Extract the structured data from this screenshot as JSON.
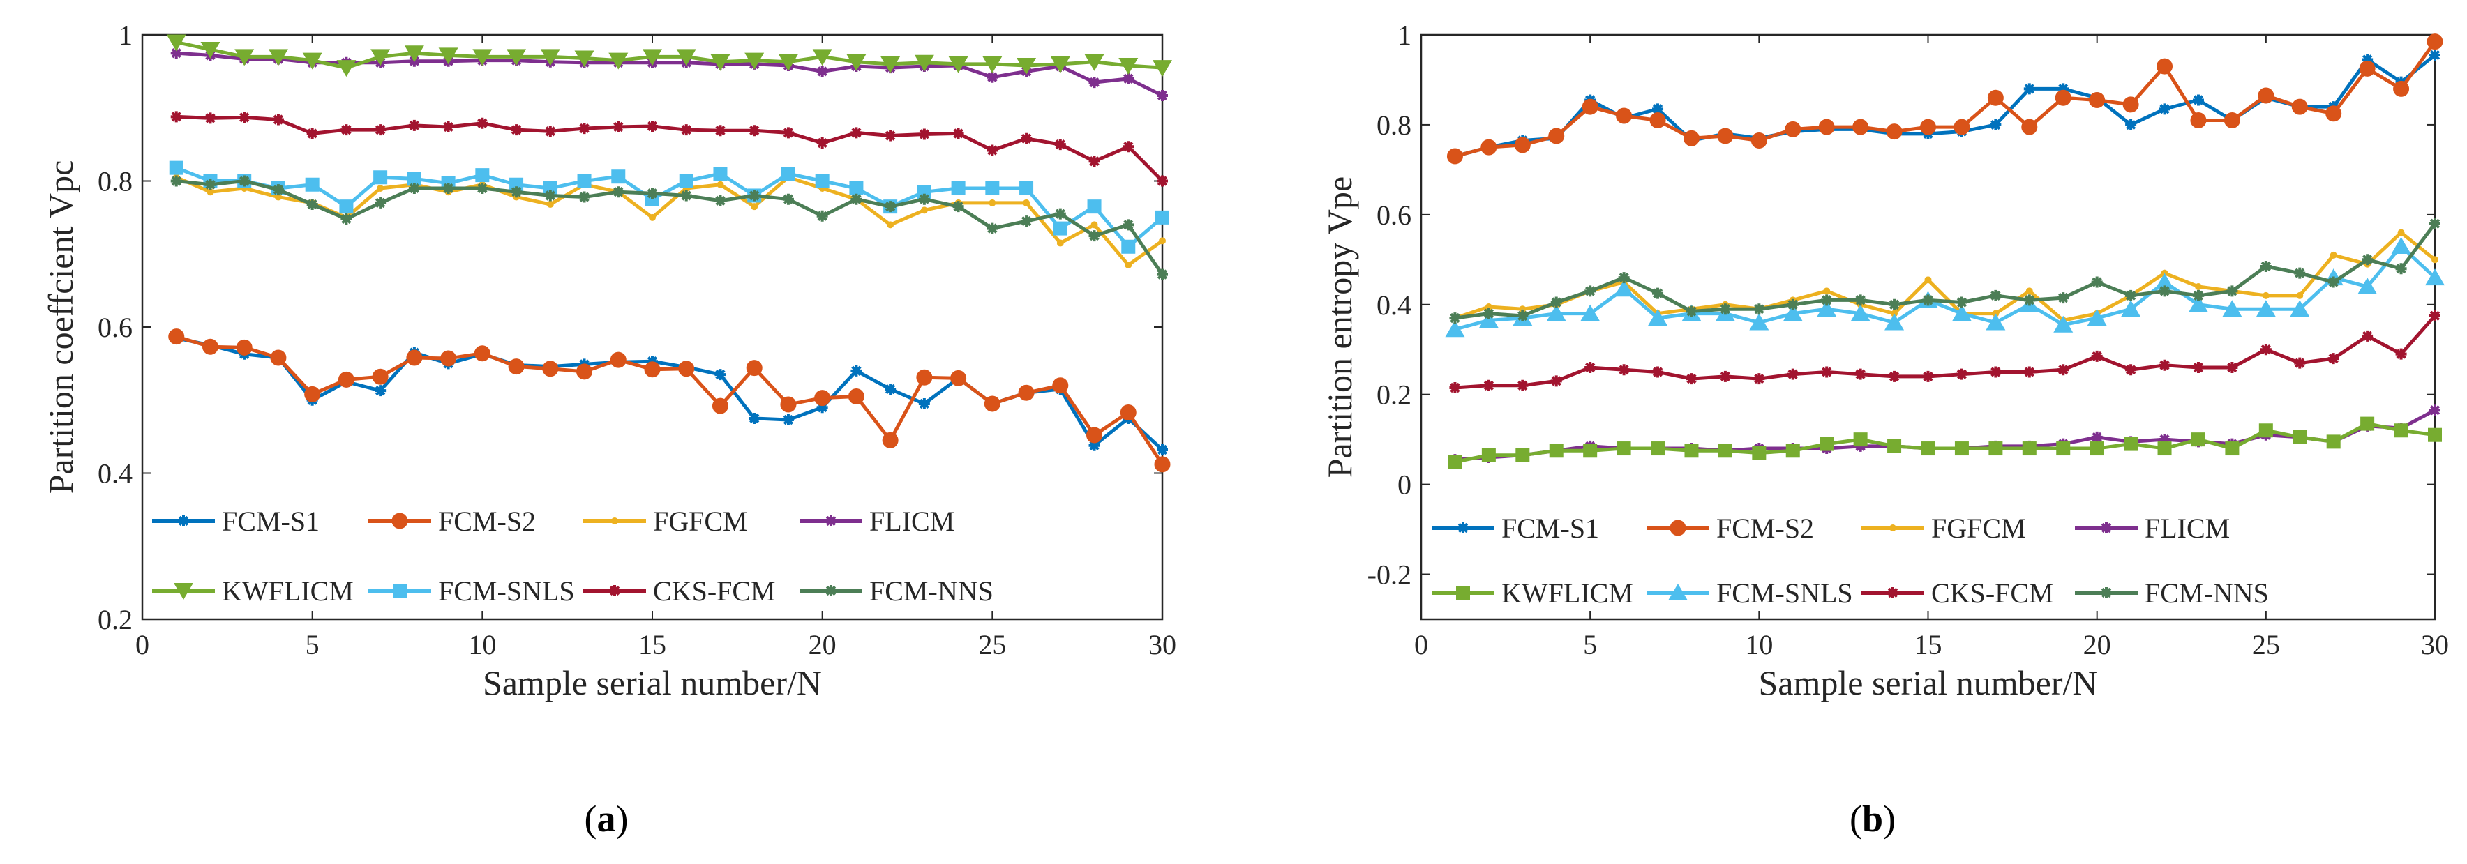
{
  "chart_data": [
    {
      "type": "line",
      "panel_label": "(a)",
      "panel_letter": "a",
      "xlabel": "Sample serial number/N",
      "ylabel": "Partition coeffcient Vpc",
      "xlim": [
        0,
        30
      ],
      "ylim": [
        0.2,
        1
      ],
      "xticks": [
        0,
        5,
        10,
        15,
        20,
        25,
        30
      ],
      "yticks": [
        0.2,
        0.4,
        0.6,
        0.8,
        1
      ],
      "ytick_labels": [
        "0.2",
        "0.4",
        "0.6",
        "0.8",
        "1"
      ],
      "x": [
        1,
        2,
        3,
        4,
        5,
        6,
        7,
        8,
        9,
        10,
        11,
        12,
        13,
        14,
        15,
        16,
        17,
        18,
        19,
        20,
        21,
        22,
        23,
        24,
        25,
        26,
        27,
        28,
        29,
        30
      ],
      "legend_position": "bottom",
      "series": [
        {
          "name": "FCM-S1",
          "color": "#0072BD",
          "marker": "star",
          "values": [
            0.585,
            0.575,
            0.563,
            0.558,
            0.5,
            0.525,
            0.513,
            0.565,
            0.55,
            0.563,
            0.548,
            0.546,
            0.549,
            0.552,
            0.553,
            0.545,
            0.535,
            0.475,
            0.473,
            0.49,
            0.54,
            0.515,
            0.495,
            0.53,
            0.495,
            0.51,
            0.515,
            0.438,
            0.475,
            0.432
          ]
        },
        {
          "name": "FCM-S2",
          "color": "#D95319",
          "marker": "circle",
          "values": [
            0.587,
            0.573,
            0.572,
            0.558,
            0.508,
            0.528,
            0.532,
            0.558,
            0.557,
            0.564,
            0.546,
            0.543,
            0.539,
            0.555,
            0.542,
            0.543,
            0.492,
            0.544,
            0.494,
            0.503,
            0.505,
            0.445,
            0.531,
            0.53,
            0.495,
            0.51,
            0.52,
            0.452,
            0.483,
            0.412
          ]
        },
        {
          "name": "FGFCM",
          "color": "#EDB120",
          "marker": "point",
          "values": [
            0.805,
            0.785,
            0.79,
            0.778,
            0.77,
            0.75,
            0.79,
            0.795,
            0.785,
            0.795,
            0.778,
            0.768,
            0.795,
            0.785,
            0.75,
            0.79,
            0.795,
            0.765,
            0.805,
            0.79,
            0.775,
            0.74,
            0.76,
            0.77,
            0.77,
            0.77,
            0.715,
            0.74,
            0.685,
            0.718
          ]
        },
        {
          "name": "FLICM",
          "color": "#7E2F8E",
          "marker": "star",
          "values": [
            0.975,
            0.972,
            0.967,
            0.967,
            0.962,
            0.962,
            0.962,
            0.964,
            0.964,
            0.965,
            0.965,
            0.963,
            0.962,
            0.962,
            0.962,
            0.962,
            0.96,
            0.96,
            0.958,
            0.95,
            0.957,
            0.955,
            0.957,
            0.958,
            0.942,
            0.95,
            0.957,
            0.935,
            0.94,
            0.917
          ]
        },
        {
          "name": "KWFLICM",
          "color": "#77AC30",
          "marker": "triangle-down",
          "values": [
            0.99,
            0.98,
            0.97,
            0.97,
            0.965,
            0.955,
            0.97,
            0.975,
            0.972,
            0.97,
            0.97,
            0.97,
            0.968,
            0.965,
            0.97,
            0.97,
            0.963,
            0.965,
            0.963,
            0.97,
            0.963,
            0.96,
            0.962,
            0.96,
            0.96,
            0.958,
            0.96,
            0.963,
            0.958,
            0.955
          ]
        },
        {
          "name": "FCM-SNLS",
          "color": "#4DBEEE",
          "marker": "square",
          "values": [
            0.818,
            0.8,
            0.8,
            0.79,
            0.795,
            0.765,
            0.805,
            0.803,
            0.797,
            0.808,
            0.795,
            0.79,
            0.8,
            0.806,
            0.775,
            0.8,
            0.81,
            0.78,
            0.81,
            0.8,
            0.79,
            0.765,
            0.785,
            0.79,
            0.79,
            0.79,
            0.735,
            0.765,
            0.71,
            0.75
          ]
        },
        {
          "name": "CKS-FCM",
          "color": "#A2142F",
          "marker": "star",
          "values": [
            0.888,
            0.886,
            0.887,
            0.884,
            0.865,
            0.87,
            0.87,
            0.876,
            0.874,
            0.879,
            0.87,
            0.868,
            0.872,
            0.874,
            0.875,
            0.87,
            0.869,
            0.869,
            0.866,
            0.852,
            0.866,
            0.862,
            0.864,
            0.865,
            0.842,
            0.858,
            0.85,
            0.827,
            0.847,
            0.8
          ]
        },
        {
          "name": "FCM-NNS",
          "color": "#4C7E56",
          "marker": "star",
          "values": [
            0.8,
            0.795,
            0.8,
            0.788,
            0.768,
            0.748,
            0.77,
            0.79,
            0.79,
            0.79,
            0.785,
            0.78,
            0.778,
            0.785,
            0.783,
            0.78,
            0.773,
            0.78,
            0.775,
            0.752,
            0.775,
            0.765,
            0.775,
            0.765,
            0.735,
            0.745,
            0.755,
            0.725,
            0.74,
            0.672
          ]
        }
      ]
    },
    {
      "type": "line",
      "panel_label": "(b)",
      "panel_letter": "b",
      "xlabel": "Sample serial number/N",
      "ylabel": "Partition entropy Vpe",
      "xlim": [
        0,
        30
      ],
      "ylim": [
        -0.3,
        1
      ],
      "xticks": [
        0,
        5,
        10,
        15,
        20,
        25,
        30
      ],
      "yticks": [
        -0.2,
        0,
        0.2,
        0.4,
        0.6,
        0.8,
        1
      ],
      "ytick_labels": [
        "-0.2",
        "0",
        "0.2",
        "0.4",
        "0.6",
        "0.8",
        "1"
      ],
      "x": [
        1,
        2,
        3,
        4,
        5,
        6,
        7,
        8,
        9,
        10,
        11,
        12,
        13,
        14,
        15,
        16,
        17,
        18,
        19,
        20,
        21,
        22,
        23,
        24,
        25,
        26,
        27,
        28,
        29,
        30
      ],
      "legend_position": "bottom",
      "series": [
        {
          "name": "FCM-S1",
          "color": "#0072BD",
          "marker": "star",
          "values": [
            0.73,
            0.75,
            0.765,
            0.77,
            0.855,
            0.815,
            0.835,
            0.765,
            0.78,
            0.77,
            0.785,
            0.79,
            0.79,
            0.78,
            0.78,
            0.785,
            0.8,
            0.88,
            0.88,
            0.86,
            0.8,
            0.835,
            0.855,
            0.81,
            0.86,
            0.84,
            0.84,
            0.945,
            0.895,
            0.955
          ]
        },
        {
          "name": "FCM-S2",
          "color": "#D95319",
          "marker": "circle",
          "values": [
            0.73,
            0.75,
            0.755,
            0.775,
            0.84,
            0.82,
            0.81,
            0.77,
            0.775,
            0.765,
            0.79,
            0.795,
            0.795,
            0.785,
            0.795,
            0.795,
            0.86,
            0.795,
            0.86,
            0.855,
            0.845,
            0.93,
            0.81,
            0.81,
            0.865,
            0.84,
            0.825,
            0.925,
            0.88,
            0.985
          ]
        },
        {
          "name": "FGFCM",
          "color": "#EDB120",
          "marker": "point",
          "values": [
            0.37,
            0.395,
            0.39,
            0.4,
            0.43,
            0.45,
            0.38,
            0.39,
            0.4,
            0.39,
            0.41,
            0.43,
            0.4,
            0.38,
            0.455,
            0.38,
            0.38,
            0.43,
            0.365,
            0.38,
            0.42,
            0.47,
            0.44,
            0.43,
            0.42,
            0.42,
            0.51,
            0.49,
            0.56,
            0.5
          ]
        },
        {
          "name": "FLICM",
          "color": "#7E2F8E",
          "marker": "star",
          "values": [
            0.055,
            0.06,
            0.065,
            0.075,
            0.085,
            0.08,
            0.08,
            0.08,
            0.075,
            0.08,
            0.08,
            0.08,
            0.085,
            0.085,
            0.08,
            0.08,
            0.085,
            0.085,
            0.09,
            0.105,
            0.095,
            0.1,
            0.095,
            0.09,
            0.11,
            0.105,
            0.095,
            0.13,
            0.125,
            0.165
          ]
        },
        {
          "name": "KWFLICM",
          "color": "#77AC30",
          "marker": "square",
          "values": [
            0.05,
            0.065,
            0.065,
            0.075,
            0.075,
            0.08,
            0.08,
            0.075,
            0.075,
            0.07,
            0.075,
            0.09,
            0.1,
            0.085,
            0.08,
            0.08,
            0.08,
            0.08,
            0.08,
            0.08,
            0.09,
            0.08,
            0.1,
            0.08,
            0.12,
            0.105,
            0.095,
            0.135,
            0.12,
            0.11
          ]
        },
        {
          "name": "FCM-SNLS",
          "color": "#4DBEEE",
          "marker": "triangle-up",
          "values": [
            0.345,
            0.365,
            0.37,
            0.38,
            0.38,
            0.435,
            0.37,
            0.38,
            0.38,
            0.36,
            0.38,
            0.39,
            0.38,
            0.36,
            0.41,
            0.38,
            0.36,
            0.4,
            0.355,
            0.37,
            0.39,
            0.45,
            0.4,
            0.39,
            0.39,
            0.39,
            0.46,
            0.44,
            0.53,
            0.46
          ]
        },
        {
          "name": "CKS-FCM",
          "color": "#A2142F",
          "marker": "star",
          "values": [
            0.215,
            0.22,
            0.22,
            0.23,
            0.26,
            0.255,
            0.25,
            0.235,
            0.24,
            0.235,
            0.245,
            0.25,
            0.245,
            0.24,
            0.24,
            0.245,
            0.25,
            0.25,
            0.255,
            0.285,
            0.255,
            0.265,
            0.26,
            0.26,
            0.3,
            0.27,
            0.28,
            0.33,
            0.29,
            0.375
          ]
        },
        {
          "name": "FCM-NNS",
          "color": "#4C7E56",
          "marker": "star",
          "values": [
            0.37,
            0.38,
            0.375,
            0.405,
            0.43,
            0.46,
            0.425,
            0.385,
            0.39,
            0.39,
            0.4,
            0.41,
            0.41,
            0.4,
            0.41,
            0.405,
            0.42,
            0.41,
            0.415,
            0.45,
            0.42,
            0.43,
            0.42,
            0.43,
            0.485,
            0.47,
            0.45,
            0.5,
            0.48,
            0.58
          ]
        }
      ]
    }
  ]
}
